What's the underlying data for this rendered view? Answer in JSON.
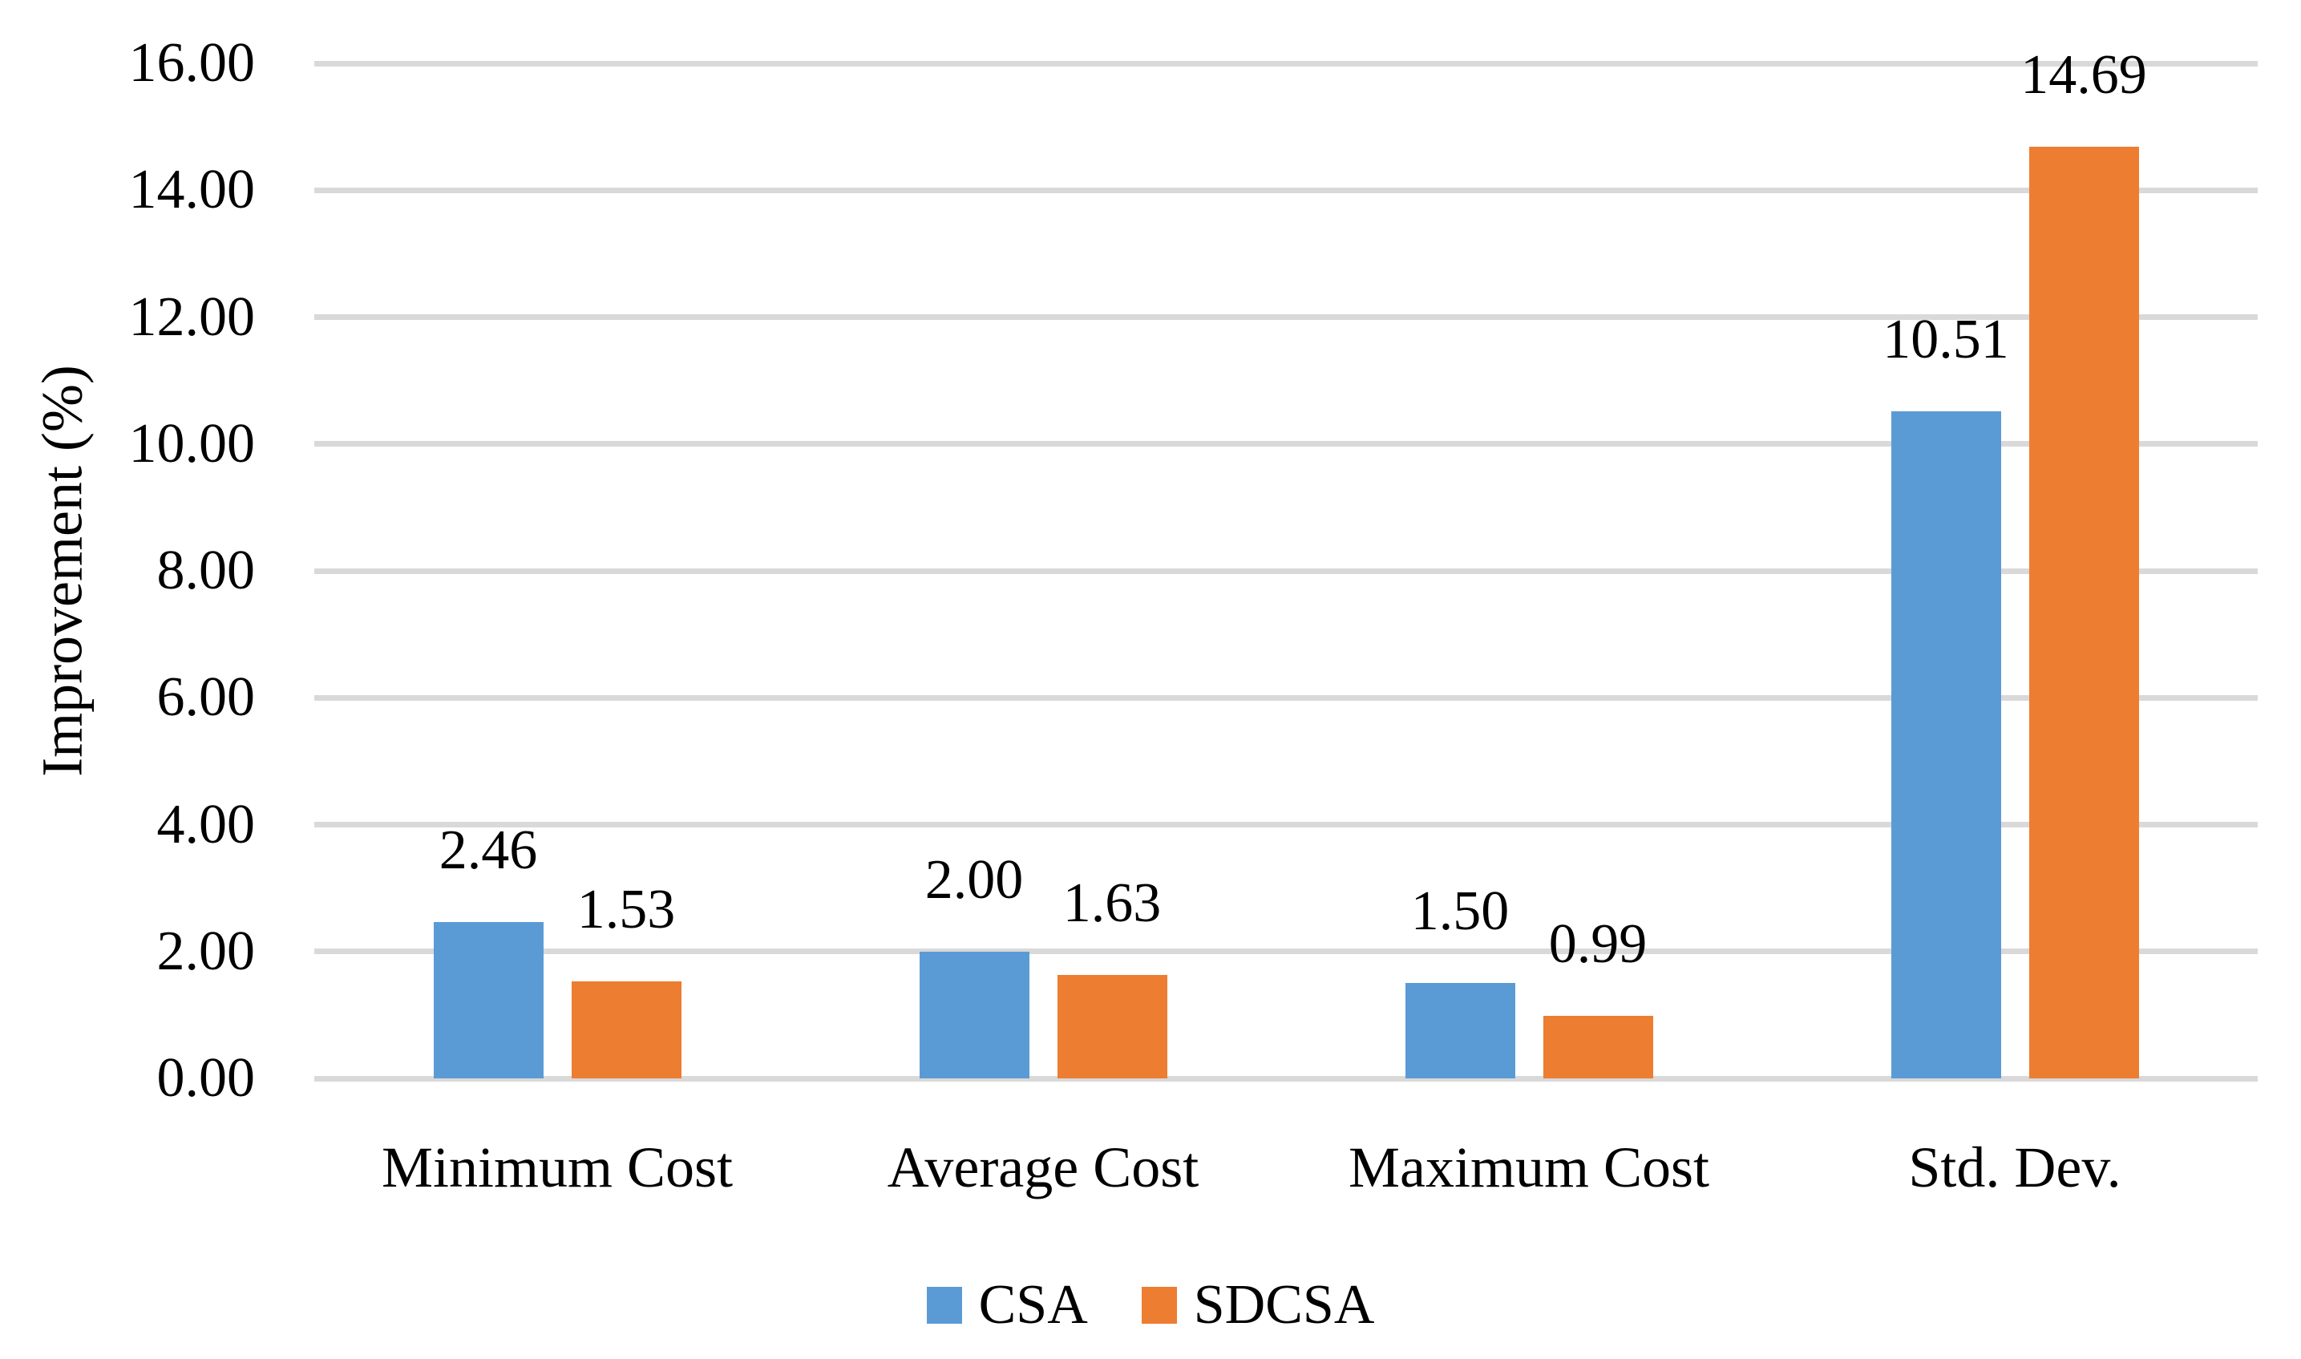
{
  "chart_data": {
    "type": "bar",
    "title": "",
    "categories": [
      "Minimum Cost",
      "Average Cost",
      "Maximum Cost",
      "Std. Dev."
    ],
    "series": [
      {
        "name": "CSA",
        "color": "#5B9BD5",
        "values": [
          2.46,
          2.0,
          1.5,
          10.51
        ],
        "labels": [
          "2.46",
          "2.00",
          "1.50",
          "10.51"
        ]
      },
      {
        "name": "SDCSA",
        "color": "#ED7D31",
        "values": [
          1.53,
          1.63,
          0.99,
          14.69
        ],
        "labels": [
          "1.53",
          "1.63",
          "0.99",
          "14.69"
        ]
      }
    ],
    "xlabel": "",
    "ylabel": "Improvement (%)",
    "ylim": [
      0,
      16
    ],
    "y_ticks": [
      "0.00",
      "2.00",
      "4.00",
      "6.00",
      "8.00",
      "10.00",
      "12.00",
      "14.00",
      "16.00"
    ],
    "grid": true,
    "gridline_color": "#D9D9D9",
    "legend_position": "bottom"
  }
}
